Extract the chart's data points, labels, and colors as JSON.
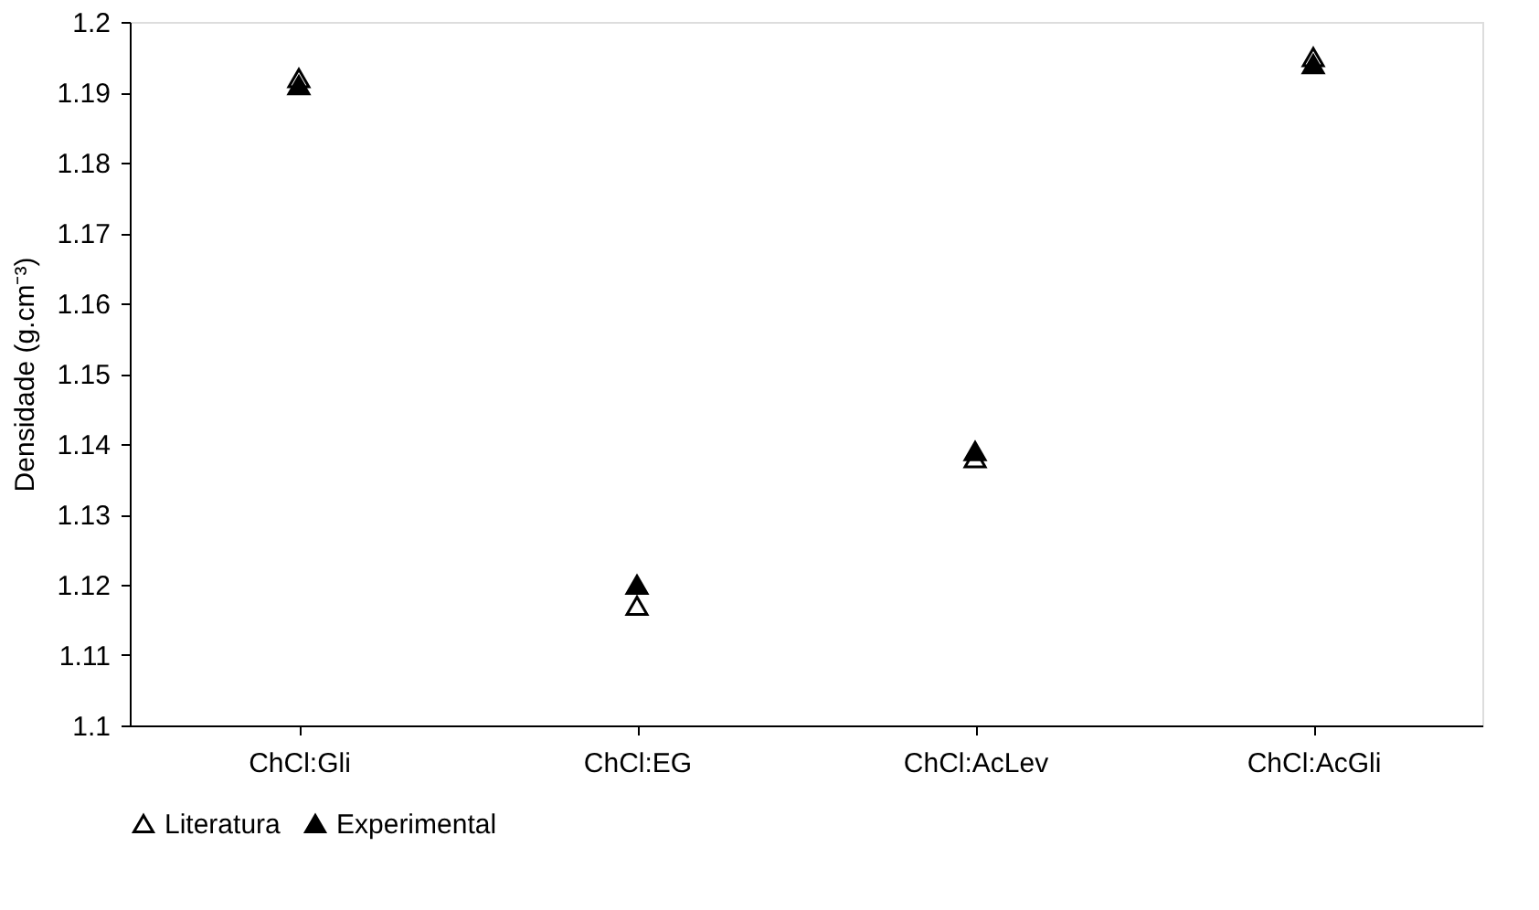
{
  "chart_data": {
    "type": "scatter",
    "ylabel": "Densidade (g.cm⁻³)",
    "categories": [
      "ChCl:Gli",
      "ChCl:EG",
      "ChCl:AcLev",
      "ChCl:AcGli"
    ],
    "series": [
      {
        "name": "Literatura",
        "color": "#000000",
        "values": [
          1.192,
          1.117,
          1.138,
          1.195
        ]
      },
      {
        "name": "Experimental",
        "color": "#000000",
        "values": [
          1.191,
          1.12,
          1.139,
          1.194
        ]
      }
    ],
    "ylim": [
      1.1,
      1.2
    ],
    "yticks": [
      1.1,
      1.11,
      1.12,
      1.13,
      1.14,
      1.15,
      1.16,
      1.17,
      1.18,
      1.19,
      1.2
    ],
    "grid": false,
    "legend": "bottom",
    "marker": "triangle"
  }
}
